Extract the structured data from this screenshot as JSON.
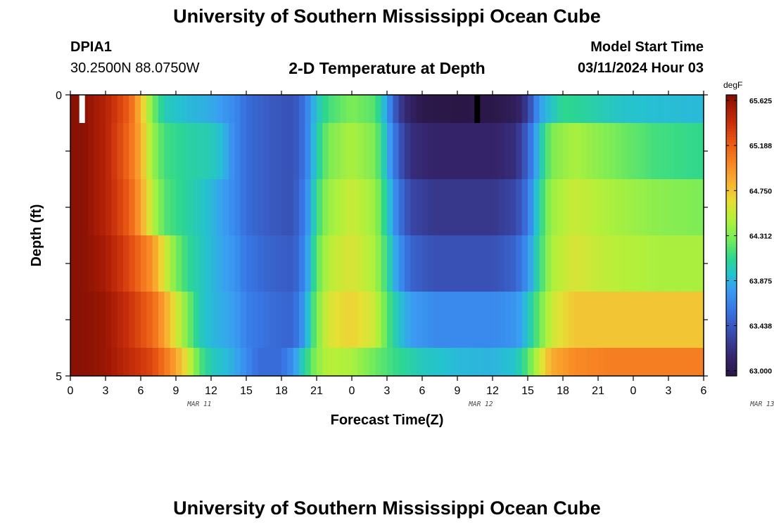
{
  "header": {
    "title": "University of Southern Mississippi Ocean Cube",
    "station_id": "DPIA1",
    "station_coords": "30.2500N  88.0750W",
    "plot_title": "2-D Temperature at Depth",
    "model_start_label": "Model Start Time",
    "model_start_value": "03/11/2024 Hour 03"
  },
  "footer": {
    "title": "University of Southern Mississippi Ocean Cube"
  },
  "chart_data": {
    "type": "heatmap",
    "xlabel": "Forecast Time(Z)",
    "ylabel": "Depth (ft)",
    "x_range_hours": [
      0,
      54
    ],
    "x_ticks": [
      "0",
      "3",
      "6",
      "9",
      "12",
      "15",
      "18",
      "21",
      "0",
      "3",
      "6",
      "9",
      "12",
      "15",
      "18",
      "21",
      "0",
      "3",
      "6"
    ],
    "date_labels": [
      {
        "label": "MAR 11",
        "hour": 11
      },
      {
        "label": "MAR 12",
        "hour": 35
      },
      {
        "label": "MAR 13",
        "hour": 59
      }
    ],
    "y_range": [
      0,
      5
    ],
    "y_tick_labels": [
      "0",
      "5"
    ],
    "colorbar": {
      "unit": "degF",
      "min": 62.95,
      "max": 65.68,
      "tick_labels": [
        "63.000",
        "63.438",
        "63.875",
        "64.312",
        "64.750",
        "65.188",
        "65.625"
      ],
      "tick_values": [
        63.0,
        63.438,
        63.875,
        64.312,
        64.75,
        65.188,
        65.625
      ]
    },
    "depth_layers": [
      {
        "depth_top": 0,
        "depth_bottom": 0.5,
        "profile": [
          [
            0,
            65.65
          ],
          [
            1,
            65.65
          ],
          [
            3,
            65.5
          ],
          [
            5,
            65.2
          ],
          [
            6,
            64.8
          ],
          [
            7,
            64.3
          ],
          [
            8,
            64.0
          ],
          [
            10,
            63.9
          ],
          [
            12,
            63.85
          ],
          [
            14,
            63.7
          ],
          [
            15,
            63.55
          ],
          [
            17,
            63.45
          ],
          [
            19,
            63.4
          ],
          [
            20,
            63.6
          ],
          [
            21,
            63.95
          ],
          [
            22,
            64.15
          ],
          [
            24,
            64.3
          ],
          [
            26,
            64.2
          ],
          [
            27,
            63.8
          ],
          [
            28,
            63.3
          ],
          [
            29,
            63.1
          ],
          [
            30,
            62.98
          ],
          [
            33,
            62.95
          ],
          [
            36,
            62.97
          ],
          [
            38,
            63.05
          ],
          [
            39,
            63.3
          ],
          [
            40,
            63.8
          ],
          [
            42,
            64.1
          ],
          [
            44,
            64.05
          ],
          [
            47,
            63.95
          ],
          [
            50,
            63.92
          ],
          [
            54,
            63.9
          ]
        ]
      },
      {
        "depth_top": 0.5,
        "depth_bottom": 1.5,
        "profile": [
          [
            0,
            65.65
          ],
          [
            1,
            65.65
          ],
          [
            3,
            65.5
          ],
          [
            5,
            65.15
          ],
          [
            6,
            64.85
          ],
          [
            7,
            64.4
          ],
          [
            8,
            64.15
          ],
          [
            10,
            64.05
          ],
          [
            12,
            64.0
          ],
          [
            13,
            63.9
          ],
          [
            14,
            63.7
          ],
          [
            15,
            63.55
          ],
          [
            17,
            63.45
          ],
          [
            19,
            63.4
          ],
          [
            20,
            63.6
          ],
          [
            21,
            64.0
          ],
          [
            22,
            64.3
          ],
          [
            24,
            64.45
          ],
          [
            26,
            64.3
          ],
          [
            27,
            63.9
          ],
          [
            28,
            63.45
          ],
          [
            29,
            63.2
          ],
          [
            31,
            63.12
          ],
          [
            36,
            63.12
          ],
          [
            38,
            63.2
          ],
          [
            39,
            63.5
          ],
          [
            40,
            63.95
          ],
          [
            41,
            64.3
          ],
          [
            43,
            64.45
          ],
          [
            46,
            64.3
          ],
          [
            50,
            64.15
          ],
          [
            54,
            64.1
          ]
        ]
      },
      {
        "depth_top": 1.5,
        "depth_bottom": 2.5,
        "profile": [
          [
            0,
            65.65
          ],
          [
            1,
            65.65
          ],
          [
            3,
            65.5
          ],
          [
            5,
            65.2
          ],
          [
            6,
            64.9
          ],
          [
            7,
            64.5
          ],
          [
            8,
            64.2
          ],
          [
            10,
            64.05
          ],
          [
            12,
            63.9
          ],
          [
            14,
            63.7
          ],
          [
            15,
            63.55
          ],
          [
            17,
            63.45
          ],
          [
            19,
            63.4
          ],
          [
            20,
            63.65
          ],
          [
            21,
            64.1
          ],
          [
            22,
            64.4
          ],
          [
            24,
            64.55
          ],
          [
            26,
            64.4
          ],
          [
            27,
            64.0
          ],
          [
            28,
            63.6
          ],
          [
            29,
            63.35
          ],
          [
            31,
            63.25
          ],
          [
            36,
            63.25
          ],
          [
            38,
            63.35
          ],
          [
            39,
            63.6
          ],
          [
            40,
            64.05
          ],
          [
            41,
            64.4
          ],
          [
            43,
            64.55
          ],
          [
            46,
            64.45
          ],
          [
            50,
            64.35
          ],
          [
            54,
            64.3
          ]
        ]
      },
      {
        "depth_top": 2.5,
        "depth_bottom": 3.5,
        "profile": [
          [
            0,
            65.65
          ],
          [
            1,
            65.65
          ],
          [
            3,
            65.55
          ],
          [
            5,
            65.3
          ],
          [
            7,
            64.95
          ],
          [
            8,
            64.6
          ],
          [
            9,
            64.3
          ],
          [
            10,
            64.1
          ],
          [
            12,
            63.9
          ],
          [
            14,
            63.75
          ],
          [
            15,
            63.6
          ],
          [
            17,
            63.5
          ],
          [
            19,
            63.45
          ],
          [
            20,
            63.7
          ],
          [
            21,
            64.2
          ],
          [
            22,
            64.5
          ],
          [
            24,
            64.6
          ],
          [
            26,
            64.45
          ],
          [
            27,
            64.1
          ],
          [
            28,
            63.75
          ],
          [
            29,
            63.5
          ],
          [
            31,
            63.4
          ],
          [
            36,
            63.4
          ],
          [
            38,
            63.5
          ],
          [
            39,
            63.75
          ],
          [
            40,
            64.1
          ],
          [
            41,
            64.45
          ],
          [
            43,
            64.6
          ],
          [
            46,
            64.5
          ],
          [
            50,
            64.45
          ],
          [
            54,
            64.45
          ]
        ]
      },
      {
        "depth_top": 3.5,
        "depth_bottom": 4.5,
        "profile": [
          [
            0,
            65.65
          ],
          [
            1,
            65.65
          ],
          [
            3,
            65.6
          ],
          [
            5,
            65.4
          ],
          [
            7,
            65.15
          ],
          [
            8,
            64.9
          ],
          [
            9,
            64.6
          ],
          [
            10,
            64.3
          ],
          [
            11,
            64.0
          ],
          [
            12,
            63.9
          ],
          [
            14,
            63.8
          ],
          [
            15,
            63.65
          ],
          [
            17,
            63.55
          ],
          [
            19,
            63.5
          ],
          [
            20,
            63.8
          ],
          [
            21,
            64.3
          ],
          [
            22,
            64.6
          ],
          [
            24,
            64.7
          ],
          [
            26,
            64.55
          ],
          [
            27,
            64.2
          ],
          [
            28,
            63.95
          ],
          [
            29,
            63.8
          ],
          [
            31,
            63.7
          ],
          [
            36,
            63.7
          ],
          [
            38,
            63.75
          ],
          [
            39,
            63.95
          ],
          [
            40,
            64.25
          ],
          [
            41,
            64.55
          ],
          [
            43,
            64.75
          ],
          [
            46,
            64.75
          ],
          [
            50,
            64.75
          ],
          [
            54,
            64.75
          ]
        ]
      },
      {
        "depth_top": 4.5,
        "depth_bottom": 5,
        "profile": [
          [
            0,
            65.65
          ],
          [
            1,
            65.65
          ],
          [
            3,
            65.6
          ],
          [
            5,
            65.45
          ],
          [
            7,
            65.3
          ],
          [
            8,
            65.1
          ],
          [
            9,
            64.9
          ],
          [
            10,
            64.6
          ],
          [
            11,
            64.2
          ],
          [
            12,
            64.0
          ],
          [
            14,
            63.85
          ],
          [
            15,
            63.7
          ],
          [
            16,
            63.55
          ],
          [
            18,
            63.55
          ],
          [
            19,
            63.75
          ],
          [
            20,
            64.05
          ],
          [
            21,
            64.35
          ],
          [
            22,
            64.5
          ],
          [
            24,
            64.45
          ],
          [
            26,
            64.25
          ],
          [
            28,
            64.1
          ],
          [
            30,
            63.98
          ],
          [
            33,
            63.9
          ],
          [
            36,
            63.88
          ],
          [
            38,
            63.95
          ],
          [
            39,
            64.2
          ],
          [
            40,
            64.55
          ],
          [
            41,
            64.85
          ],
          [
            43,
            65.0
          ],
          [
            46,
            65.05
          ],
          [
            50,
            65.05
          ],
          [
            54,
            65.05
          ]
        ]
      }
    ],
    "markers": [
      {
        "hour": 1.0,
        "depth_top": 0,
        "depth_bottom": 0.5,
        "color": "#ffffff"
      },
      {
        "hour": 34.7,
        "depth_top": 0,
        "depth_bottom": 0.5,
        "color": "#000000"
      }
    ]
  }
}
